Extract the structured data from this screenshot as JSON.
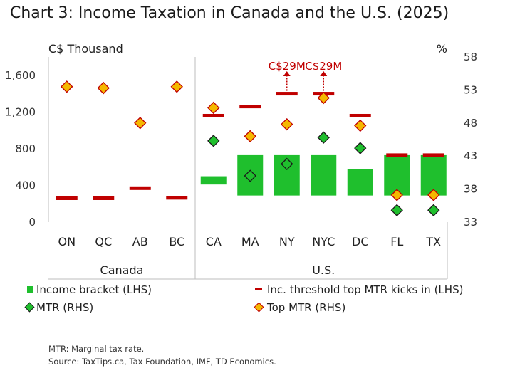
{
  "chart_data": {
    "type": "bar",
    "title": "Chart 3: Income Taxation in Canada and the U.S. (2025)",
    "y_left_label": "C$ Thousand",
    "y_right_label": "%",
    "y_left_range": [
      0,
      1800
    ],
    "y_left_ticks": [
      "0",
      "400",
      "800",
      "1,200",
      "1,600"
    ],
    "y_right_range": [
      33,
      58
    ],
    "y_right_ticks": [
      "33",
      "38",
      "43",
      "48",
      "53",
      "58"
    ],
    "categories": [
      "ON",
      "QC",
      "AB",
      "BC",
      "CA",
      "MA",
      "NY",
      "NYC",
      "DC",
      "FL",
      "TX"
    ],
    "groups": [
      {
        "label": "Canada",
        "categories": [
          "ON",
          "QC",
          "AB",
          "BC"
        ]
      },
      {
        "label": "U.S.",
        "categories": [
          "CA",
          "MA",
          "NY",
          "NYC",
          "DC",
          "FL",
          "TX"
        ]
      }
    ],
    "series": [
      {
        "name": "Income bracket (LHS)",
        "color": "#1fbf2d",
        "low": [
          null,
          null,
          null,
          null,
          410,
          290,
          290,
          290,
          290,
          290,
          290
        ],
        "high": [
          null,
          null,
          null,
          null,
          500,
          730,
          730,
          730,
          580,
          730,
          730
        ]
      },
      {
        "name": "Inc. threshold top MTR kicks in (LHS)",
        "color": "#c00000",
        "values": [
          260,
          260,
          370,
          265,
          1160,
          1260,
          1400,
          1400,
          1160,
          730,
          730
        ]
      },
      {
        "name": "MTR (RHS)",
        "color": "#1fbf2d",
        "values": [
          null,
          null,
          null,
          null,
          45.3,
          40.0,
          41.8,
          45.8,
          44.2,
          34.8,
          34.8
        ]
      },
      {
        "name": "Top MTR (RHS)",
        "color": "#f5b800",
        "values": [
          53.5,
          53.3,
          48.0,
          53.5,
          50.3,
          46.0,
          47.8,
          51.8,
          47.6,
          37.1,
          37.1
        ]
      }
    ],
    "annotations": [
      {
        "category": "NY",
        "text": "C$29M"
      },
      {
        "category": "NYC",
        "text": "C$29M"
      }
    ],
    "legend_position": "bottom",
    "grid": false
  },
  "footnotes": {
    "note": "MTR: Marginal tax rate.",
    "source": "Source: TaxTips.ca, Tax Foundation, IMF, TD Economics."
  }
}
